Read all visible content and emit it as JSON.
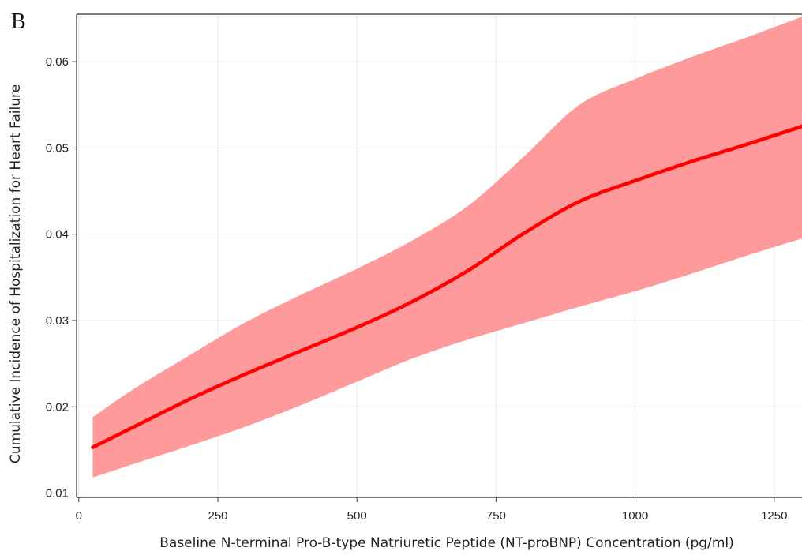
{
  "panel_label": "B",
  "colors": {
    "curve": "#ff0000",
    "band": "#ff9a9c",
    "grid": "#e9e9e9",
    "axis": "#333333"
  },
  "chart_data": {
    "type": "line",
    "title": "",
    "xlabel": "Baseline N-terminal Pro-B-type Natriuretic Peptide (NT-proBNP) Concentration (pg/ml)",
    "ylabel": "Cumulative Incidence of Hospitalization for Heart Failure",
    "xlim": [
      -4,
      1300
    ],
    "ylim": [
      0.0095,
      0.0655
    ],
    "x_ticks": [
      0,
      250,
      500,
      750,
      1000,
      1250
    ],
    "x_tick_labels": [
      "0",
      "250",
      "500",
      "750",
      "1000",
      "1250"
    ],
    "y_ticks": [
      0.01,
      0.02,
      0.03,
      0.04,
      0.05,
      0.06
    ],
    "y_tick_labels": [
      "0.01",
      "0.02",
      "0.03",
      "0.04",
      "0.05",
      "0.06"
    ],
    "grid": true,
    "series": [
      {
        "x": [
          25,
          100,
          200,
          300,
          400,
          500,
          600,
          700,
          800,
          900,
          1000,
          1100,
          1200,
          1300
        ],
        "y": [
          0.0153,
          0.0177,
          0.0209,
          0.0238,
          0.0265,
          0.0292,
          0.0322,
          0.0358,
          0.0401,
          0.0438,
          0.0462,
          0.0484,
          0.0504,
          0.0525
        ],
        "ci_lower": [
          0.0118,
          0.0134,
          0.0155,
          0.0177,
          0.0202,
          0.0229,
          0.0256,
          0.0278,
          0.0297,
          0.0316,
          0.0334,
          0.0354,
          0.0375,
          0.0395
        ],
        "ci_upper": [
          0.0188,
          0.0221,
          0.026,
          0.0298,
          0.033,
          0.036,
          0.0393,
          0.0433,
          0.049,
          0.055,
          0.058,
          0.0605,
          0.0628,
          0.0652
        ]
      }
    ]
  }
}
